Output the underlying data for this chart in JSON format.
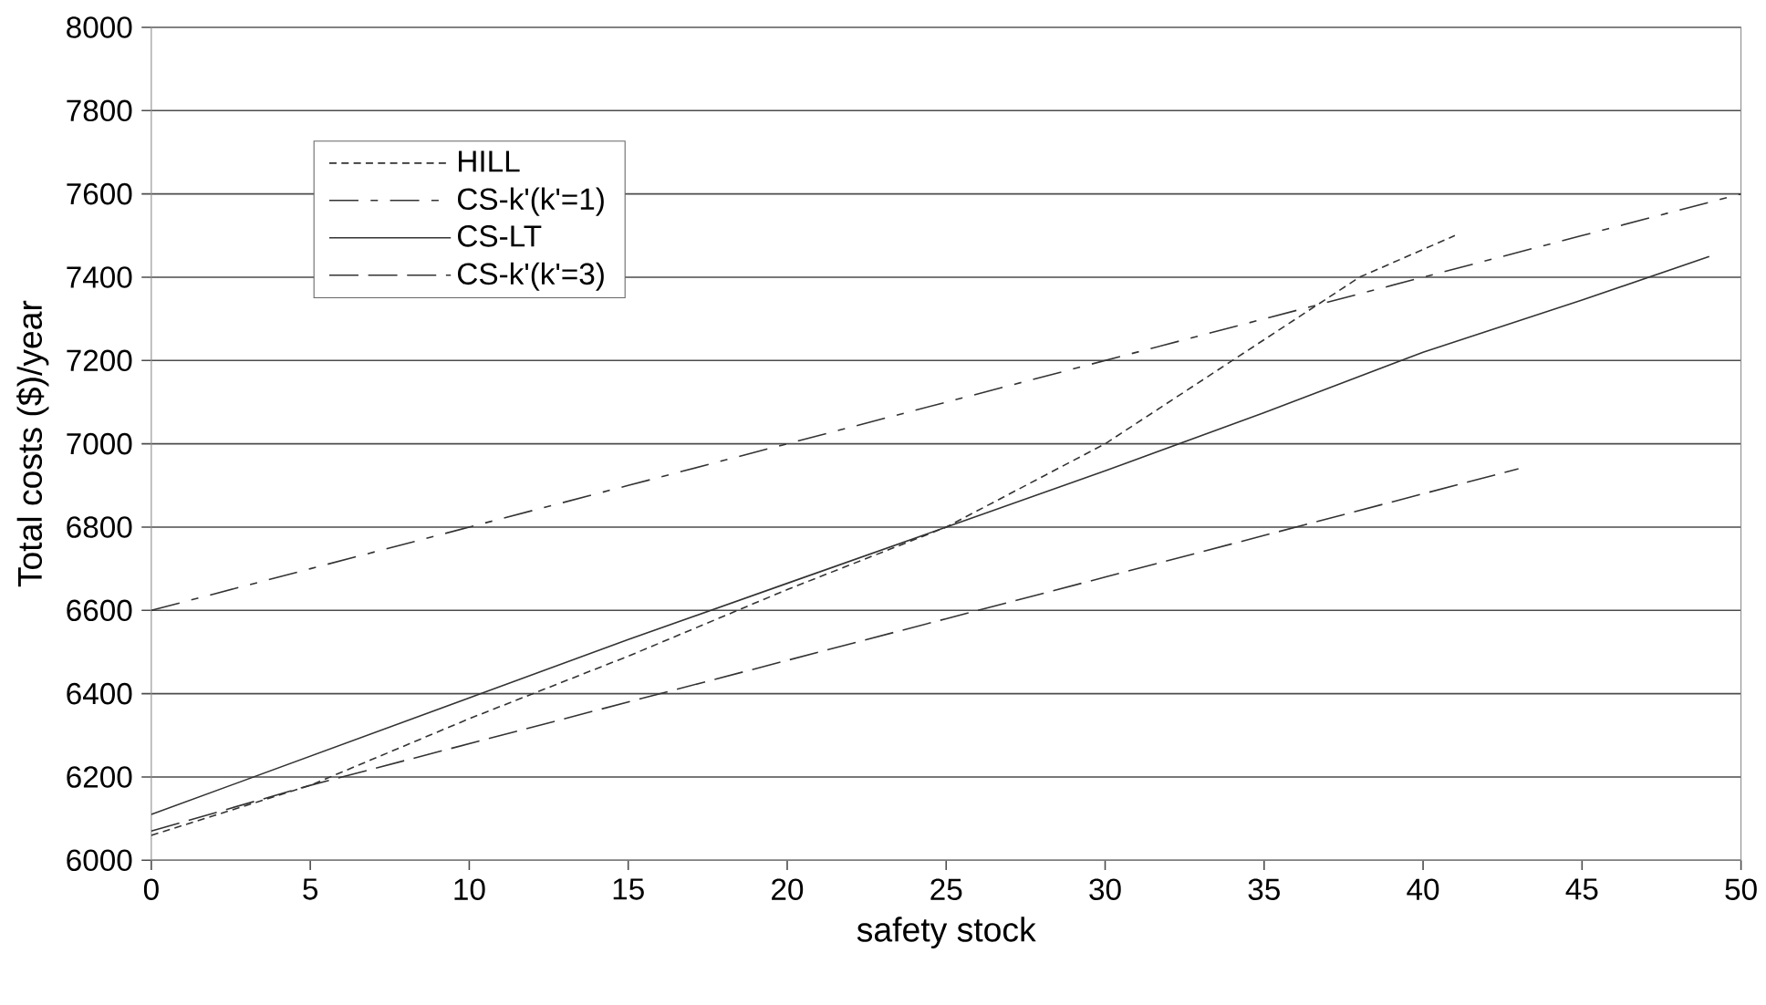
{
  "chart_data": {
    "type": "line",
    "xlabel": "safety stock",
    "ylabel": "Total costs ($)/year",
    "xlim": [
      0,
      50
    ],
    "xticks": [
      0,
      5,
      10,
      15,
      20,
      25,
      30,
      35,
      40,
      45,
      50
    ],
    "ylim": [
      6000,
      8000
    ],
    "yticks": [
      6000,
      6200,
      6400,
      6600,
      6800,
      7000,
      7200,
      7400,
      7600,
      7800,
      8000
    ],
    "grid": "y",
    "legend": "top left",
    "series": [
      {
        "name": "HILL",
        "color": "#333333",
        "line_style": "dotted",
        "x": [
          0,
          5,
          10,
          15,
          20,
          25,
          30,
          35,
          38,
          41
        ],
        "values": [
          6060,
          6180,
          6340,
          6490,
          6650,
          6800,
          7000,
          7250,
          7400,
          7500
        ]
      },
      {
        "name": "CS-k'(k'=1)",
        "color": "#333333",
        "line_style": "dashdot",
        "x": [
          0,
          5,
          10,
          15,
          20,
          25,
          30,
          35,
          40,
          45,
          50
        ],
        "values": [
          6600,
          6700,
          6800,
          6900,
          7000,
          7100,
          7200,
          7300,
          7400,
          7500,
          7600
        ]
      },
      {
        "name": "CS-LT",
        "color": "#333333",
        "line_style": "solid",
        "x": [
          0,
          5,
          10,
          15,
          20,
          25,
          30,
          35,
          40,
          45,
          49
        ],
        "values": [
          6110,
          6250,
          6390,
          6530,
          6665,
          6800,
          6935,
          7075,
          7220,
          7345,
          7450
        ]
      },
      {
        "name": "CS-k'(k'=3)",
        "color": "#333333",
        "line_style": "dashed",
        "x": [
          0,
          5,
          10,
          15,
          20,
          25,
          30,
          35,
          40,
          43
        ],
        "values": [
          6070,
          6180,
          6280,
          6380,
          6480,
          6580,
          6680,
          6780,
          6880,
          6940
        ]
      }
    ]
  }
}
